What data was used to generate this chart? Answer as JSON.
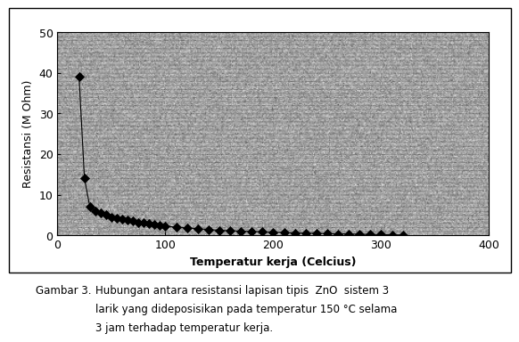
{
  "x_data": [
    20,
    25,
    30,
    35,
    40,
    45,
    50,
    55,
    60,
    65,
    70,
    75,
    80,
    85,
    90,
    95,
    100,
    110,
    120,
    130,
    140,
    150,
    160,
    170,
    180,
    190,
    200,
    210,
    220,
    230,
    240,
    250,
    260,
    270,
    280,
    290,
    300,
    310,
    320
  ],
  "y_data": [
    39,
    14,
    7,
    6,
    5.5,
    5.0,
    4.5,
    4.2,
    4.0,
    3.8,
    3.5,
    3.2,
    3.0,
    2.8,
    2.6,
    2.4,
    2.2,
    2.0,
    1.8,
    1.6,
    1.4,
    1.2,
    1.1,
    1.0,
    0.9,
    0.8,
    0.7,
    0.6,
    0.55,
    0.5,
    0.45,
    0.4,
    0.35,
    0.3,
    0.25,
    0.2,
    0.15,
    0.1,
    0.08
  ],
  "xlabel": "Temperatur kerja (Celcius)",
  "ylabel": "Resistansi (M Ohm)",
  "xlim": [
    0,
    400
  ],
  "ylim": [
    0,
    50
  ],
  "xticks": [
    0,
    100,
    200,
    300,
    400
  ],
  "yticks": [
    0,
    10,
    20,
    30,
    40,
    50
  ],
  "line_color": "#000000",
  "marker_color": "#000000",
  "marker": "D",
  "marker_size": 4,
  "fig_bg_color": "#ffffff",
  "plot_bg_color": "#b0b0b0",
  "caption_gambar": "Gambar 3.",
  "caption_text1": "Hubungan antara resistansi lapisan tipis  ZnO  sistem 3",
  "caption_text2": "larik yang dideposisikan pada temperatur 150 °C selama",
  "caption_text3": "3 jam terhadap temperatur kerja.",
  "caption_fontsize": 8.5,
  "axis_label_fontsize": 9,
  "tick_fontsize": 9
}
